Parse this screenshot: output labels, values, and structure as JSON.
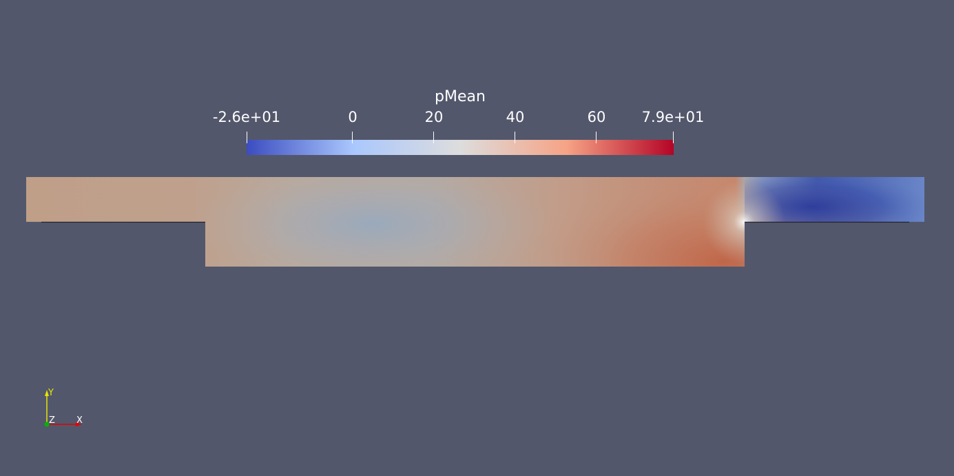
{
  "scalar_bar": {
    "title": "pMean",
    "min_label": "-2.6e+01",
    "max_label": "7.9e+01",
    "range": [
      -26,
      79
    ],
    "ticks": [
      {
        "value": -26,
        "label": "-2.6e+01"
      },
      {
        "value": 0,
        "label": "0"
      },
      {
        "value": 20,
        "label": "20"
      },
      {
        "value": 40,
        "label": "40"
      },
      {
        "value": 60,
        "label": "60"
      },
      {
        "value": 79,
        "label": "7.9e+01"
      }
    ],
    "colormap": [
      "#3b4cc0",
      "#aac7fd",
      "#dddddd",
      "#f6a385",
      "#b40426"
    ]
  },
  "orientation_axes": {
    "y_label": "Y",
    "z_label": "Z",
    "x_label": "X",
    "y_color": "#e6e600",
    "x_color": "#e60000",
    "z_color": "#00b400"
  },
  "background_color": "#52576b"
}
